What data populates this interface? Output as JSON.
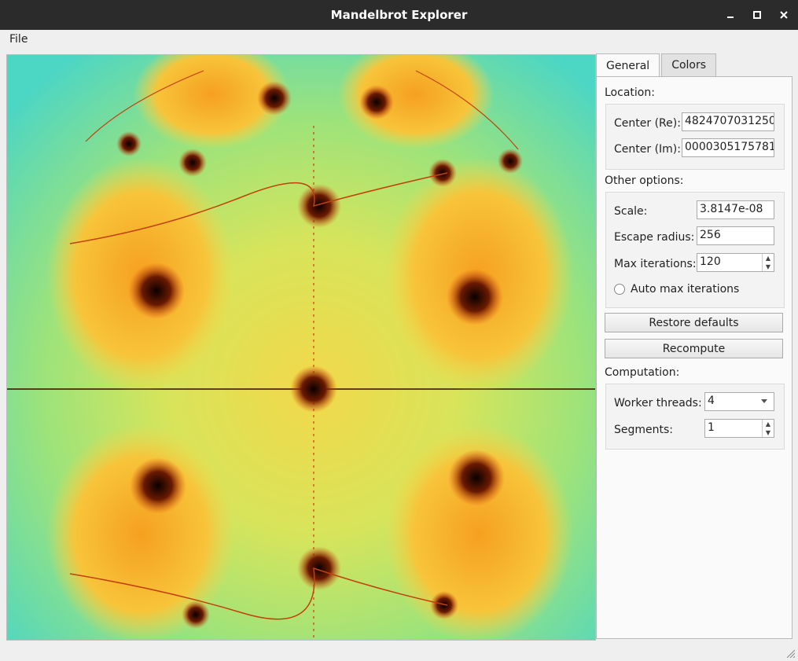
{
  "window": {
    "title": "Mandelbrot Explorer"
  },
  "menu": {
    "file": "File"
  },
  "tabs": [
    {
      "label": "General"
    },
    {
      "label": "Colors"
    }
  ],
  "general": {
    "location_label": "Location:",
    "center_re_label": "Center (Re):",
    "center_re_value": "4824707031250",
    "center_im_label": "Center (Im):",
    "center_im_value": "0000305175781",
    "other_options_label": "Other options:",
    "scale_label": "Scale:",
    "scale_value": "3.8147e-08",
    "escape_radius_label": "Escape radius:",
    "escape_radius_value": "256",
    "max_iterations_label": "Max iterations:",
    "max_iterations_value": "120",
    "auto_max_iterations_label": "Auto max iterations",
    "restore_defaults": "Restore defaults",
    "recompute": "Recompute",
    "computation_label": "Computation:",
    "worker_threads_label": "Worker threads:",
    "worker_threads_value": "4",
    "segments_label": "Segments:",
    "segments_value": "1"
  }
}
